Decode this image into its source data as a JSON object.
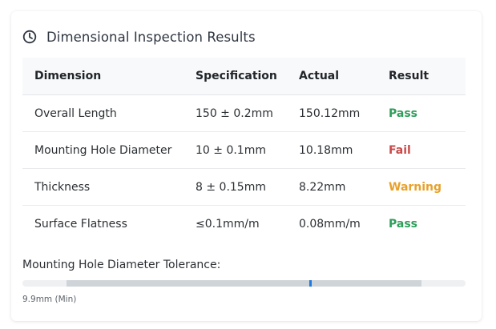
{
  "header": {
    "icon": "clock-icon",
    "title": "Dimensional Inspection Results"
  },
  "table": {
    "columns": [
      "Dimension",
      "Specification",
      "Actual",
      "Result"
    ],
    "rows": [
      {
        "dimension": "Overall Length",
        "specification": "150 ± 0.2mm",
        "actual": "150.12mm",
        "result": "Pass",
        "status": "pass"
      },
      {
        "dimension": "Mounting Hole Diameter",
        "specification": "10 ± 0.1mm",
        "actual": "10.18mm",
        "result": "Fail",
        "status": "fail"
      },
      {
        "dimension": "Thickness",
        "specification": "8 ± 0.15mm",
        "actual": "8.22mm",
        "result": "Warning",
        "status": "warning"
      },
      {
        "dimension": "Surface Flatness",
        "specification": "≤0.1mm/m",
        "actual": "0.08mm/m",
        "result": "Pass",
        "status": "pass"
      }
    ]
  },
  "tolerance": {
    "label": "Mounting Hole Diameter Tolerance:",
    "min_label": "9.9mm (Min)"
  },
  "colors": {
    "pass": "#2e9e5b",
    "fail": "#c94a4a",
    "warning": "#e8a12a",
    "marker": "#1f7ae0"
  }
}
